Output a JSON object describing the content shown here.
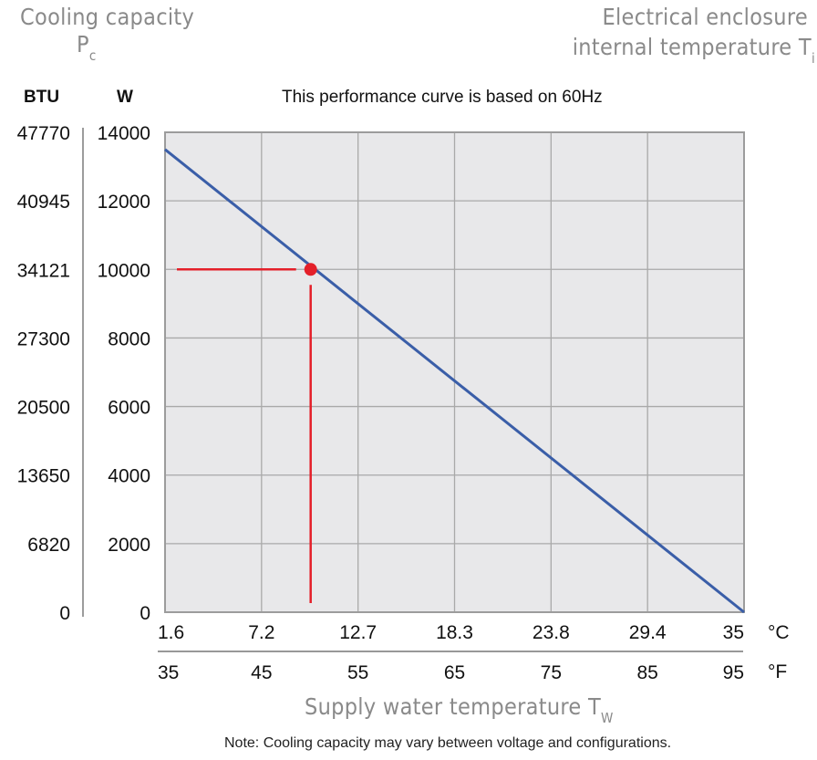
{
  "header": {
    "left_title": "Cooling capacity",
    "left_symbol": "P",
    "left_symbol_sub": "c",
    "right_title_line1": "Electrical enclosure",
    "right_title_line2": "internal temperature T",
    "right_title_sub": "i"
  },
  "units": {
    "btu": "BTU",
    "watt": "W"
  },
  "subtitle": "This performance curve is based on 60Hz",
  "xaxis": {
    "title": "Supply water temperature T",
    "title_sub": "W",
    "celsius_unit": "°C",
    "fahrenheit_unit": "°F"
  },
  "note": "Note: Cooling capacity may vary between voltage and configurations.",
  "colors": {
    "curve": "#3a5ea8",
    "marker": "#e4202a",
    "plot_bg": "#e8e8ea",
    "grid": "#a9a9a9"
  },
  "chart_data": {
    "type": "line",
    "title": "This performance curve is based on 60Hz",
    "xlabel": "Supply water temperature Tw",
    "ylabel": "Cooling capacity Pc",
    "xlim": [
      1.6,
      35
    ],
    "ylim": [
      0,
      14000
    ],
    "grid": true,
    "x_ticks_celsius": [
      "1.6",
      "7.2",
      "12.7",
      "18.3",
      "23.8",
      "29.4",
      "35"
    ],
    "x_ticks_celsius_values": [
      1.6,
      7.2,
      12.7,
      18.3,
      23.8,
      29.4,
      35
    ],
    "x_ticks_fahrenheit": [
      "35",
      "45",
      "55",
      "65",
      "75",
      "85",
      "95"
    ],
    "y_ticks_watt": [
      "14000",
      "12000",
      "10000",
      "8000",
      "6000",
      "4000",
      "2000",
      "0"
    ],
    "y_ticks_watt_values": [
      14000,
      12000,
      10000,
      8000,
      6000,
      4000,
      2000,
      0
    ],
    "y_ticks_btu": [
      "47770",
      "40945",
      "34121",
      "27300",
      "20500",
      "13650",
      "6820",
      "0"
    ],
    "series": [
      {
        "name": "Cooling capacity",
        "x": [
          1.6,
          35
        ],
        "y": [
          13500,
          0
        ]
      }
    ],
    "annotation_point": {
      "x": 10.0,
      "y": 10000
    }
  }
}
